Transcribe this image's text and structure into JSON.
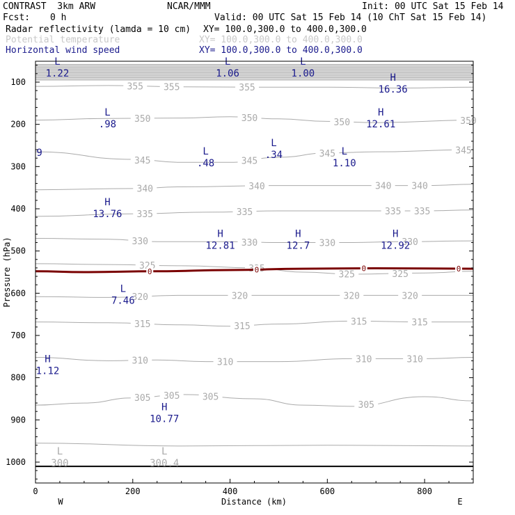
{
  "header": {
    "model": "CONTRAST  3km ARW",
    "org": "NCAR/MMM",
    "init": "Init: 00 UTC Sat 15 Feb 14",
    "fcst_label": "Fcst:",
    "fcst_value": "0 h",
    "valid": "Valid: 00 UTC Sat 15 Feb 14 (10 ChT Sat 15 Feb 14)",
    "fields": [
      {
        "name": "Radar reflectivity (lamda = 10 cm)",
        "xy": "XY= 100.0,300.0 to 400.0,300.0",
        "color": "#000000"
      },
      {
        "name": "Potential temperature",
        "xy": "XY= 100.0,300.0 to 400.0,300.0",
        "color": "#c8c8c8"
      },
      {
        "name": "Horizontal wind speed",
        "xy": "XY= 100.0,300.0 to 400.0,300.0",
        "color": "#1a1a8c"
      }
    ]
  },
  "chart_data": {
    "type": "cross-section",
    "xlabel": "Distance (km)",
    "ylabel": "Pressure (hPa)",
    "xlim": [
      0,
      900
    ],
    "ylim": [
      1050,
      50
    ],
    "xticks": [
      0,
      200,
      400,
      600,
      800
    ],
    "yticks": [
      100,
      200,
      300,
      400,
      500,
      600,
      700,
      800,
      900,
      1000
    ],
    "west_label": "W",
    "east_label": "E",
    "theta_color": "#aaaaaa",
    "wind_color": "#1a1a8c",
    "freezing_color": "#7a0000",
    "upper_isentropes_start_p": 58,
    "upper_isentropes_end_p": 95,
    "upper_isentropes_count": 14,
    "isentropes": [
      {
        "label": "355",
        "pts": [
          [
            0,
            110
          ],
          [
            150,
            108
          ],
          [
            300,
            111
          ],
          [
            450,
            112
          ],
          [
            600,
            112
          ],
          [
            750,
            114
          ],
          [
            900,
            112
          ]
        ],
        "labels_at": [
          [
            205,
            355
          ],
          [
            280,
            355
          ],
          [
            435,
            355
          ]
        ]
      },
      {
        "label": "350",
        "pts": [
          [
            0,
            190
          ],
          [
            150,
            186
          ],
          [
            300,
            185
          ],
          [
            400,
            182
          ],
          [
            500,
            187
          ],
          [
            600,
            193
          ],
          [
            700,
            196
          ],
          [
            900,
            190
          ]
        ],
        "labels_at": [
          [
            220,
            350
          ],
          [
            440,
            350
          ],
          [
            630,
            350
          ],
          [
            890,
            350
          ]
        ]
      },
      {
        "label": "345",
        "pts": [
          [
            0,
            265
          ],
          [
            200,
            283
          ],
          [
            300,
            290
          ],
          [
            400,
            290
          ],
          [
            500,
            278
          ],
          [
            600,
            268
          ],
          [
            700,
            265
          ],
          [
            900,
            260
          ]
        ],
        "labels_at": [
          [
            220,
            345
          ],
          [
            440,
            345
          ],
          [
            600,
            345
          ],
          [
            880,
            345
          ]
        ]
      },
      {
        "label": "340",
        "pts": [
          [
            0,
            355
          ],
          [
            200,
            352
          ],
          [
            300,
            348
          ],
          [
            500,
            345
          ],
          [
            650,
            345
          ],
          [
            800,
            345
          ],
          [
            900,
            342
          ]
        ],
        "labels_at": [
          [
            225,
            340
          ],
          [
            455,
            340
          ],
          [
            715,
            340
          ],
          [
            790,
            340
          ]
        ]
      },
      {
        "label": "335",
        "pts": [
          [
            0,
            418
          ],
          [
            200,
            412
          ],
          [
            350,
            408
          ],
          [
            500,
            405
          ],
          [
            650,
            405
          ],
          [
            800,
            405
          ],
          [
            900,
            403
          ]
        ],
        "labels_at": [
          [
            225,
            335
          ],
          [
            430,
            335
          ],
          [
            735,
            335
          ],
          [
            795,
            335
          ]
        ]
      },
      {
        "label": "330",
        "pts": [
          [
            0,
            470
          ],
          [
            150,
            472
          ],
          [
            250,
            478
          ],
          [
            400,
            478
          ],
          [
            500,
            480
          ],
          [
            650,
            480
          ],
          [
            750,
            478
          ],
          [
            900,
            476
          ]
        ],
        "labels_at": [
          [
            215,
            330
          ],
          [
            440,
            330
          ],
          [
            600,
            330
          ],
          [
            770,
            330
          ]
        ]
      },
      {
        "label": "325",
        "pts": [
          [
            0,
            530
          ],
          [
            150,
            532
          ],
          [
            300,
            535
          ],
          [
            450,
            540
          ],
          [
            550,
            550
          ],
          [
            650,
            555
          ],
          [
            800,
            552
          ],
          [
            900,
            548
          ]
        ],
        "labels_at": [
          [
            230,
            325
          ],
          [
            455,
            325
          ],
          [
            640,
            325
          ],
          [
            750,
            325
          ]
        ]
      },
      {
        "label": "320",
        "pts": [
          [
            0,
            608
          ],
          [
            150,
            610
          ],
          [
            300,
            605
          ],
          [
            450,
            605
          ],
          [
            600,
            605
          ],
          [
            750,
            605
          ],
          [
            900,
            605
          ]
        ],
        "labels_at": [
          [
            215,
            320
          ],
          [
            420,
            320
          ],
          [
            650,
            320
          ],
          [
            770,
            320
          ]
        ]
      },
      {
        "label": "315",
        "pts": [
          [
            0,
            668
          ],
          [
            150,
            670
          ],
          [
            300,
            675
          ],
          [
            400,
            678
          ],
          [
            500,
            673
          ],
          [
            650,
            666
          ],
          [
            800,
            668
          ],
          [
            900,
            668
          ]
        ],
        "labels_at": [
          [
            220,
            315
          ],
          [
            425,
            315
          ],
          [
            665,
            315
          ],
          [
            790,
            315
          ]
        ]
      },
      {
        "label": "310",
        "pts": [
          [
            0,
            752
          ],
          [
            150,
            760
          ],
          [
            250,
            758
          ],
          [
            350,
            762
          ],
          [
            500,
            762
          ],
          [
            650,
            755
          ],
          [
            800,
            755
          ],
          [
            900,
            752
          ]
        ],
        "labels_at": [
          [
            215,
            310
          ],
          [
            390,
            310
          ],
          [
            675,
            310
          ],
          [
            780,
            310
          ]
        ]
      },
      {
        "label": "305",
        "pts": [
          [
            0,
            865
          ],
          [
            100,
            860
          ],
          [
            200,
            848
          ],
          [
            300,
            840
          ],
          [
            450,
            850
          ],
          [
            550,
            865
          ],
          [
            650,
            868
          ],
          [
            800,
            845
          ],
          [
            900,
            855
          ]
        ],
        "labels_at": [
          [
            220,
            305
          ],
          [
            280,
            305
          ],
          [
            360,
            305
          ],
          [
            680,
            305
          ]
        ]
      },
      {
        "label": "",
        "pts": [
          [
            0,
            955
          ],
          [
            300,
            962
          ],
          [
            600,
            960
          ],
          [
            900,
            962
          ]
        ],
        "labels_at": []
      }
    ],
    "freezing_line": {
      "label": "0",
      "pts": [
        [
          0,
          548
        ],
        [
          100,
          550
        ],
        [
          250,
          548
        ],
        [
          400,
          545
        ],
        [
          550,
          542
        ],
        [
          700,
          541
        ],
        [
          900,
          542
        ]
      ],
      "labels_at": [
        [
          235,
          0
        ],
        [
          455,
          0
        ],
        [
          675,
          0
        ],
        [
          870,
          0
        ]
      ]
    },
    "surface_line_p": 1010,
    "extrema": [
      {
        "type": "L",
        "value": "1.22",
        "x": 45,
        "p": 72,
        "cls": "wind"
      },
      {
        "type": "L",
        "value": "1.06",
        "x": 395,
        "p": 72,
        "cls": "wind"
      },
      {
        "type": "L",
        "value": "1.00",
        "x": 550,
        "p": 72,
        "cls": "wind"
      },
      {
        "type": "H",
        "value": "16.36",
        "x": 735,
        "p": 110,
        "cls": "wind"
      },
      {
        "type": "L",
        "value": ".98",
        "x": 148,
        "p": 192,
        "cls": "wind"
      },
      {
        "type": "H",
        "value": "12.61",
        "x": 710,
        "p": 192,
        "cls": "wind"
      },
      {
        "type": "",
        "value": "9",
        "x": 8,
        "p": 260,
        "cls": "wind"
      },
      {
        "type": "L",
        "value": ".48",
        "x": 350,
        "p": 285,
        "cls": "wind"
      },
      {
        "type": "L",
        "value": ".34",
        "x": 490,
        "p": 265,
        "cls": "wind"
      },
      {
        "type": "L",
        "value": "1.10",
        "x": 635,
        "p": 285,
        "cls": "wind"
      },
      {
        "type": "H",
        "value": "13.76",
        "x": 148,
        "p": 405,
        "cls": "wind"
      },
      {
        "type": "H",
        "value": "12.81",
        "x": 380,
        "p": 480,
        "cls": "wind"
      },
      {
        "type": "H",
        "value": "12.7",
        "x": 540,
        "p": 480,
        "cls": "wind"
      },
      {
        "type": "H",
        "value": "12.92",
        "x": 740,
        "p": 480,
        "cls": "wind"
      },
      {
        "type": "L",
        "value": "7.46",
        "x": 180,
        "p": 610,
        "cls": "wind"
      },
      {
        "type": "H",
        "value": "1.12",
        "x": 25,
        "p": 777,
        "cls": "wind"
      },
      {
        "type": "H",
        "value": "10.77",
        "x": 265,
        "p": 890,
        "cls": "wind"
      },
      {
        "type": "L",
        "value": "300",
        "x": 50,
        "p": 995,
        "cls": "theta"
      },
      {
        "type": "L",
        "value": "300.4",
        "x": 265,
        "p": 995,
        "cls": "theta"
      }
    ]
  }
}
